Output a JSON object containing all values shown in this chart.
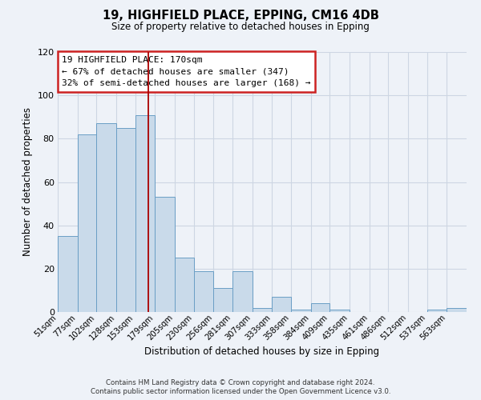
{
  "title": "19, HIGHFIELD PLACE, EPPING, CM16 4DB",
  "subtitle": "Size of property relative to detached houses in Epping",
  "xlabel": "Distribution of detached houses by size in Epping",
  "ylabel": "Number of detached properties",
  "bin_labels": [
    "51sqm",
    "77sqm",
    "102sqm",
    "128sqm",
    "153sqm",
    "179sqm",
    "205sqm",
    "230sqm",
    "256sqm",
    "281sqm",
    "307sqm",
    "333sqm",
    "358sqm",
    "384sqm",
    "409sqm",
    "435sqm",
    "461sqm",
    "486sqm",
    "512sqm",
    "537sqm",
    "563sqm"
  ],
  "bin_edges": [
    51,
    77,
    102,
    128,
    153,
    179,
    205,
    230,
    256,
    281,
    307,
    333,
    358,
    384,
    409,
    435,
    461,
    486,
    512,
    537,
    563,
    589
  ],
  "bar_heights": [
    35,
    82,
    87,
    85,
    91,
    53,
    25,
    19,
    11,
    19,
    2,
    7,
    1,
    4,
    1,
    0,
    0,
    0,
    0,
    1,
    2
  ],
  "bar_color": "#c9daea",
  "bar_edge_color": "#6a9ec5",
  "grid_color": "#cdd6e3",
  "vline_x": 170,
  "vline_color": "#aa0000",
  "annotation_box_color": "#ffffff",
  "annotation_border_color": "#cc2222",
  "annotation_line1": "19 HIGHFIELD PLACE: 170sqm",
  "annotation_line2": "← 67% of detached houses are smaller (347)",
  "annotation_line3": "32% of semi-detached houses are larger (168) →",
  "ylim": [
    0,
    120
  ],
  "yticks": [
    0,
    20,
    40,
    60,
    80,
    100,
    120
  ],
  "footer1": "Contains HM Land Registry data © Crown copyright and database right 2024.",
  "footer2": "Contains public sector information licensed under the Open Government Licence v3.0.",
  "bg_color": "#eef2f8",
  "plot_bg_color": "#eef2f8"
}
